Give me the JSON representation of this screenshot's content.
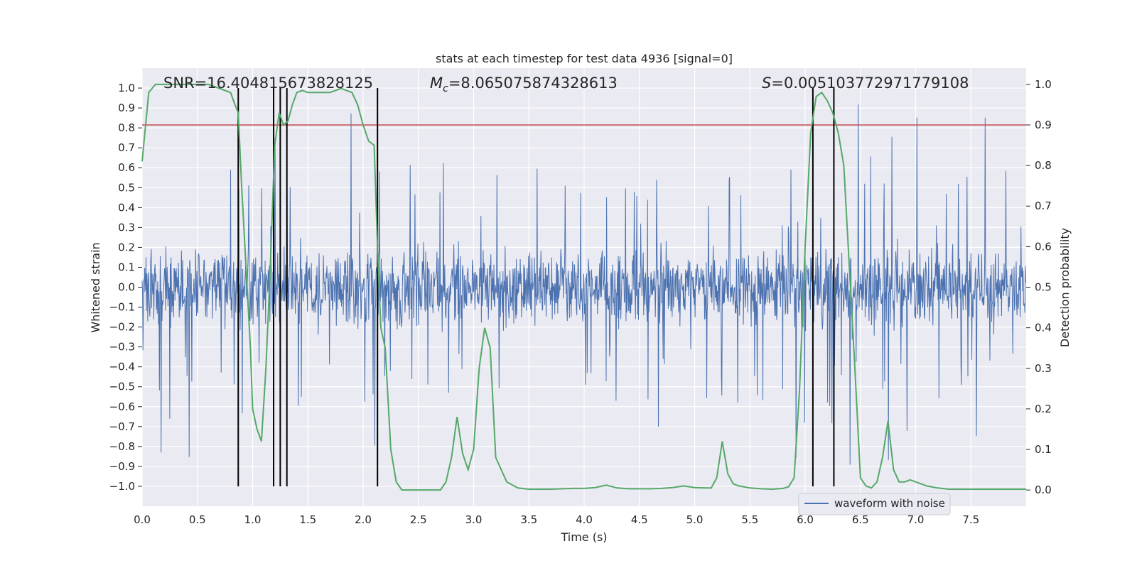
{
  "chart_data": {
    "type": "line",
    "title": "stats at each timestep for test data 4936 [signal=0]",
    "xlabel": "Time (s)",
    "ylabel": "Whitened strain",
    "ylabel_right": "Detection probability",
    "xlim": [
      0.0,
      8.0
    ],
    "ylim": [
      -1.1,
      1.1
    ],
    "ylim_right": [
      -0.04,
      1.04
    ],
    "x_ticks": [
      "0.0",
      "0.5",
      "1.0",
      "1.5",
      "2.0",
      "2.5",
      "3.0",
      "3.5",
      "4.0",
      "4.5",
      "5.0",
      "5.5",
      "6.0",
      "6.5",
      "7.0",
      "7.5"
    ],
    "y_ticks": [
      "1.0",
      "0.9",
      "0.8",
      "0.7",
      "0.6",
      "0.5",
      "0.4",
      "0.3",
      "0.2",
      "0.1",
      "0.0",
      "−0.1",
      "−0.2",
      "−0.3",
      "−0.4",
      "−0.5",
      "−0.6",
      "−0.7",
      "−0.8",
      "−0.9",
      "−1.0"
    ],
    "y_right_ticks": [
      "1.0",
      "0.9",
      "0.8",
      "0.7",
      "0.6",
      "0.5",
      "0.4",
      "0.3",
      "0.2",
      "0.1",
      "0.0"
    ],
    "grid": true,
    "legend_position": "lower-right",
    "annotations": {
      "snr": "SNR=16.404815673828125",
      "mc_symbol": "M",
      "mc_sub": "c",
      "mc_value": "=8.065075874328613",
      "s_symbol": "S",
      "s_value": "=0.005103772971779108"
    },
    "threshold": {
      "value": 0.9,
      "axis": "right"
    },
    "detection_markers_x": [
      0.87,
      1.19,
      1.25,
      1.31,
      2.13,
      6.07,
      6.26
    ],
    "series": [
      {
        "name": "waveform with noise",
        "axis": "left",
        "color": "#4c72b0",
        "sample_rate": 512,
        "envelope": 0.27,
        "peak_up_max": 0.95,
        "peak_down_max": 1.0
      },
      {
        "axis": "right",
        "color": "#55a868",
        "x": [
          0.0,
          0.06,
          0.12,
          0.2,
          0.3,
          0.4,
          0.5,
          0.6,
          0.7,
          0.8,
          0.84,
          0.87,
          0.9,
          0.94,
          0.98,
          1.0,
          1.04,
          1.08,
          1.12,
          1.16,
          1.2,
          1.24,
          1.28,
          1.32,
          1.36,
          1.4,
          1.45,
          1.5,
          1.6,
          1.7,
          1.8,
          1.9,
          1.95,
          2.0,
          2.05,
          2.1,
          2.13,
          2.16,
          2.2,
          2.25,
          2.3,
          2.35,
          2.4,
          2.5,
          2.6,
          2.7,
          2.75,
          2.8,
          2.85,
          2.9,
          2.95,
          3.0,
          3.05,
          3.1,
          3.15,
          3.2,
          3.3,
          3.4,
          3.5,
          3.6,
          3.7,
          3.8,
          3.9,
          4.0,
          4.1,
          4.2,
          4.3,
          4.4,
          4.5,
          4.6,
          4.7,
          4.8,
          4.9,
          5.0,
          5.1,
          5.15,
          5.2,
          5.25,
          5.3,
          5.35,
          5.4,
          5.5,
          5.6,
          5.7,
          5.8,
          5.85,
          5.9,
          5.95,
          6.0,
          6.05,
          6.1,
          6.15,
          6.2,
          6.25,
          6.3,
          6.35,
          6.4,
          6.45,
          6.5,
          6.55,
          6.6,
          6.65,
          6.7,
          6.75,
          6.8,
          6.85,
          6.9,
          6.95,
          7.0,
          7.05,
          7.1,
          7.2,
          7.3,
          7.4,
          7.5,
          7.6,
          7.7,
          7.8,
          7.9,
          8.0
        ],
        "values": [
          0.81,
          0.98,
          1.0,
          1.0,
          1.0,
          1.0,
          1.0,
          1.0,
          0.99,
          0.98,
          0.95,
          0.93,
          0.75,
          0.55,
          0.35,
          0.2,
          0.15,
          0.12,
          0.3,
          0.55,
          0.85,
          0.93,
          0.9,
          0.91,
          0.95,
          0.98,
          0.985,
          0.98,
          0.98,
          0.98,
          0.99,
          0.98,
          0.95,
          0.9,
          0.86,
          0.85,
          0.6,
          0.4,
          0.35,
          0.1,
          0.02,
          0.0,
          0.0,
          0.0,
          0.0,
          0.0,
          0.02,
          0.08,
          0.18,
          0.09,
          0.05,
          0.1,
          0.3,
          0.4,
          0.35,
          0.08,
          0.02,
          0.005,
          0.002,
          0.002,
          0.002,
          0.003,
          0.004,
          0.004,
          0.006,
          0.012,
          0.005,
          0.003,
          0.003,
          0.003,
          0.004,
          0.006,
          0.01,
          0.006,
          0.005,
          0.005,
          0.03,
          0.12,
          0.04,
          0.015,
          0.01,
          0.005,
          0.003,
          0.002,
          0.004,
          0.008,
          0.03,
          0.25,
          0.6,
          0.88,
          0.97,
          0.98,
          0.96,
          0.93,
          0.88,
          0.8,
          0.55,
          0.3,
          0.03,
          0.01,
          0.005,
          0.02,
          0.08,
          0.17,
          0.05,
          0.02,
          0.02,
          0.025,
          0.02,
          0.015,
          0.01,
          0.005,
          0.002,
          0.002,
          0.002,
          0.002,
          0.002,
          0.002,
          0.002,
          0.002
        ]
      }
    ]
  }
}
